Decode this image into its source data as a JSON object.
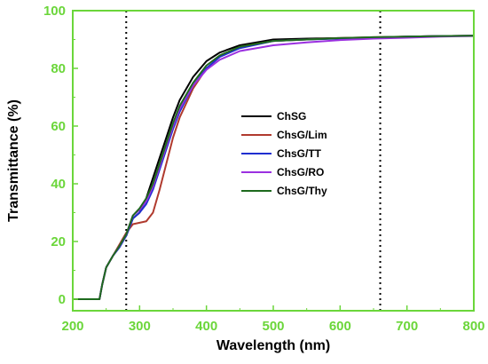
{
  "chart_data": {
    "type": "line",
    "title": "",
    "xlabel": "Wavelength (nm)",
    "ylabel": "Transmittance (%)",
    "xlim": [
      200,
      800
    ],
    "ylim": [
      -4,
      100
    ],
    "xticks": [
      200,
      300,
      400,
      500,
      600,
      700,
      800
    ],
    "yticks": [
      0,
      20,
      40,
      60,
      80,
      100
    ],
    "grid": false,
    "legend_position": "center-right",
    "reference_lines": [
      {
        "x": 280,
        "style": "dotted",
        "color": "#000000"
      },
      {
        "x": 660,
        "style": "dotted",
        "color": "#000000"
      }
    ],
    "colors": {
      "frame": "#6bd63a",
      "tick_labels": "#6bd63a"
    },
    "series": [
      {
        "name": "ChSG",
        "color": "#000000",
        "points": [
          [
            200,
            0
          ],
          [
            240,
            0
          ],
          [
            244,
            5
          ],
          [
            250,
            11
          ],
          [
            260,
            15
          ],
          [
            270,
            18.5
          ],
          [
            280,
            22
          ],
          [
            290,
            28
          ],
          [
            300,
            30
          ],
          [
            310,
            35
          ],
          [
            320,
            42
          ],
          [
            330,
            49
          ],
          [
            340,
            56
          ],
          [
            350,
            63
          ],
          [
            360,
            69
          ],
          [
            380,
            77
          ],
          [
            400,
            82.5
          ],
          [
            420,
            85.5
          ],
          [
            450,
            88
          ],
          [
            500,
            90
          ],
          [
            550,
            90.3
          ],
          [
            600,
            90.5
          ],
          [
            650,
            90.7
          ],
          [
            700,
            91
          ],
          [
            750,
            91.2
          ],
          [
            800,
            91.3
          ]
        ]
      },
      {
        "name": "ChsG/Lim",
        "color": "#b03a2e",
        "points": [
          [
            200,
            0
          ],
          [
            240,
            0
          ],
          [
            244,
            5
          ],
          [
            250,
            11
          ],
          [
            260,
            15
          ],
          [
            270,
            19
          ],
          [
            280,
            23
          ],
          [
            290,
            26
          ],
          [
            300,
            26.5
          ],
          [
            310,
            27
          ],
          [
            320,
            30
          ],
          [
            330,
            38
          ],
          [
            340,
            47
          ],
          [
            350,
            56
          ],
          [
            360,
            63
          ],
          [
            380,
            73
          ],
          [
            400,
            80
          ],
          [
            420,
            84
          ],
          [
            450,
            87.5
          ],
          [
            500,
            89.5
          ],
          [
            550,
            90
          ],
          [
            600,
            90.5
          ],
          [
            650,
            90.8
          ],
          [
            700,
            91
          ],
          [
            750,
            91.2
          ],
          [
            800,
            91.3
          ]
        ]
      },
      {
        "name": "ChsG/TT",
        "color": "#1f2fd0",
        "points": [
          [
            200,
            0
          ],
          [
            240,
            0
          ],
          [
            244,
            5
          ],
          [
            250,
            11
          ],
          [
            260,
            15
          ],
          [
            270,
            18
          ],
          [
            280,
            22
          ],
          [
            290,
            28
          ],
          [
            300,
            30
          ],
          [
            310,
            33
          ],
          [
            320,
            38
          ],
          [
            330,
            45
          ],
          [
            340,
            52
          ],
          [
            350,
            59
          ],
          [
            360,
            65
          ],
          [
            380,
            74
          ],
          [
            400,
            80
          ],
          [
            420,
            84
          ],
          [
            450,
            87
          ],
          [
            500,
            89.5
          ],
          [
            550,
            90
          ],
          [
            600,
            90.3
          ],
          [
            650,
            90.7
          ],
          [
            700,
            91
          ],
          [
            750,
            91.2
          ],
          [
            800,
            91.3
          ]
        ]
      },
      {
        "name": "ChsG/RO",
        "color": "#9b30e0",
        "points": [
          [
            200,
            0
          ],
          [
            240,
            0
          ],
          [
            244,
            5
          ],
          [
            250,
            11
          ],
          [
            260,
            15
          ],
          [
            270,
            18.5
          ],
          [
            280,
            22.5
          ],
          [
            290,
            29
          ],
          [
            300,
            31
          ],
          [
            310,
            34
          ],
          [
            320,
            39
          ],
          [
            330,
            46
          ],
          [
            340,
            53
          ],
          [
            350,
            60
          ],
          [
            360,
            66
          ],
          [
            380,
            74
          ],
          [
            400,
            79.5
          ],
          [
            420,
            83
          ],
          [
            450,
            86
          ],
          [
            500,
            88
          ],
          [
            550,
            89
          ],
          [
            600,
            89.8
          ],
          [
            650,
            90.3
          ],
          [
            700,
            90.6
          ],
          [
            750,
            91
          ],
          [
            800,
            91.2
          ]
        ]
      },
      {
        "name": "ChsG/Thy",
        "color": "#1e6a1e",
        "points": [
          [
            200,
            0
          ],
          [
            240,
            0
          ],
          [
            244,
            5
          ],
          [
            250,
            11
          ],
          [
            260,
            15
          ],
          [
            270,
            18.5
          ],
          [
            280,
            22.5
          ],
          [
            290,
            29
          ],
          [
            300,
            31.5
          ],
          [
            310,
            35
          ],
          [
            320,
            40
          ],
          [
            330,
            47
          ],
          [
            340,
            54
          ],
          [
            350,
            61
          ],
          [
            360,
            67
          ],
          [
            380,
            75
          ],
          [
            400,
            81
          ],
          [
            420,
            84.5
          ],
          [
            450,
            87.5
          ],
          [
            500,
            89.5
          ],
          [
            550,
            90
          ],
          [
            600,
            90.5
          ],
          [
            650,
            90.8
          ],
          [
            700,
            91
          ],
          [
            750,
            91.2
          ],
          [
            800,
            91.3
          ]
        ]
      }
    ]
  }
}
